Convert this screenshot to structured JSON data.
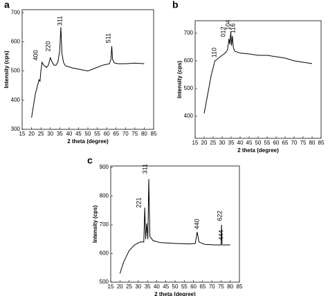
{
  "chart_data": [
    {
      "type": "line",
      "panel_label": "a",
      "xlabel": "2 theta (degree)",
      "ylabel": "Intensity (cps)",
      "x": [
        20,
        22,
        24,
        24.5,
        25,
        25.6,
        26.5,
        28,
        29,
        30,
        31,
        32,
        33,
        34,
        35,
        35.6,
        36.2,
        37,
        38,
        42,
        46,
        50,
        54,
        58,
        61.5,
        62.3,
        62.7,
        63.1,
        64,
        66,
        70,
        75,
        80
      ],
      "values": [
        340,
        420,
        470,
        465,
        500,
        530,
        520,
        512,
        520,
        545,
        530,
        520,
        520,
        530,
        570,
        650,
        560,
        530,
        518,
        510,
        505,
        500,
        510,
        520,
        525,
        540,
        585,
        540,
        528,
        525,
        525,
        527,
        525
      ],
      "xlim": [
        15,
        85
      ],
      "ylim": [
        300,
        710
      ],
      "xticks": [
        15,
        20,
        25,
        30,
        35,
        40,
        45,
        50,
        55,
        60,
        65,
        70,
        75,
        80,
        85
      ],
      "yticks": [
        300,
        400,
        500,
        600,
        700
      ],
      "color": "#000000",
      "annotations": [
        "400",
        "220",
        "311",
        "511"
      ]
    },
    {
      "type": "line",
      "panel_label": "b",
      "xlabel": "2 theta (degree)",
      "ylabel": "Intensity (cps)",
      "x": [
        20,
        22,
        24,
        26,
        28,
        30,
        32,
        33,
        33.8,
        34.3,
        34.8,
        35.2,
        35.7,
        36.2,
        37,
        40,
        45,
        50,
        55,
        60,
        65,
        70,
        75,
        80
      ],
      "values": [
        410,
        480,
        550,
        600,
        610,
        620,
        630,
        640,
        680,
        660,
        705,
        655,
        690,
        650,
        635,
        628,
        625,
        620,
        620,
        615,
        610,
        600,
        595,
        590
      ],
      "xlim": [
        15,
        85
      ],
      "ylim": [
        320,
        745
      ],
      "xticks": [
        15,
        20,
        25,
        30,
        35,
        40,
        45,
        50,
        55,
        60,
        65,
        70,
        75,
        80,
        85
      ],
      "yticks": [
        400,
        500,
        600,
        700
      ],
      "color": "#000000",
      "annotations": [
        "110",
        "012",
        "104",
        "116"
      ]
    },
    {
      "type": "line",
      "panel_label": "c",
      "xlabel": "2 theta (degree)",
      "ylabel": "Intensity (cps)",
      "x": [
        20,
        22,
        25,
        28,
        31,
        33,
        33.5,
        34,
        34.6,
        35.2,
        35.7,
        36.3,
        38,
        42,
        50,
        58,
        61,
        62,
        63,
        66,
        72,
        75,
        75.3,
        75.6,
        80
      ],
      "values": [
        530,
        570,
        610,
        630,
        640,
        640,
        760,
        650,
        705,
        650,
        860,
        660,
        645,
        638,
        635,
        633,
        635,
        675,
        640,
        632,
        630,
        630,
        700,
        630,
        630
      ],
      "xlim": [
        15,
        85
      ],
      "ylim": [
        500,
        905
      ],
      "xticks": [
        15,
        20,
        25,
        30,
        35,
        40,
        45,
        50,
        55,
        60,
        65,
        70,
        75,
        80,
        85
      ],
      "yticks": [
        500,
        600,
        700,
        800,
        900
      ],
      "color": "#000000",
      "annotations": [
        "221",
        "311",
        "440",
        "622",
        "444"
      ]
    }
  ]
}
